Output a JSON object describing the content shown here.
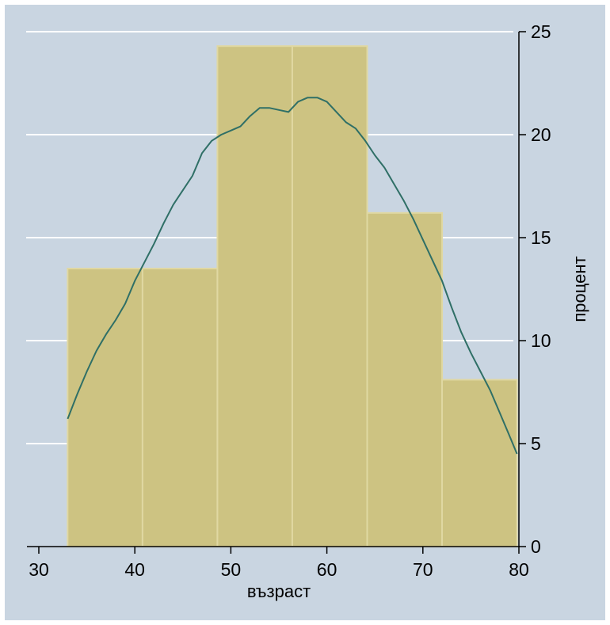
{
  "chart_data": {
    "type": "bar",
    "subtype": "histogram with kernel density line",
    "xlabel": "възраст",
    "ylabel": "процент",
    "xlim": [
      30,
      80
    ],
    "ylim": [
      0,
      25
    ],
    "x_ticks": [
      30,
      40,
      50,
      60,
      70,
      80
    ],
    "y_ticks": [
      0,
      5,
      10,
      15,
      20,
      25
    ],
    "y_axis_side": "right",
    "grid": "horizontal",
    "bins": [
      {
        "start": 33.0,
        "end": 40.8,
        "value": 13.5
      },
      {
        "start": 40.8,
        "end": 48.6,
        "value": 13.5
      },
      {
        "start": 48.6,
        "end": 56.4,
        "value": 24.3
      },
      {
        "start": 56.4,
        "end": 64.2,
        "value": 24.3
      },
      {
        "start": 64.2,
        "end": 72.0,
        "value": 16.2
      },
      {
        "start": 72.0,
        "end": 79.8,
        "value": 8.1
      }
    ],
    "density_line": {
      "x": [
        33,
        34,
        35,
        36,
        37,
        38,
        39,
        40,
        41,
        42,
        43,
        44,
        45,
        46,
        47,
        48,
        49,
        50,
        51,
        52,
        53,
        54,
        55,
        56,
        57,
        58,
        59,
        60,
        61,
        62,
        63,
        64,
        65,
        66,
        67,
        68,
        69,
        70,
        71,
        72,
        73,
        74,
        75,
        76,
        77,
        78,
        79,
        79.8
      ],
      "y": [
        6.2,
        7.4,
        8.5,
        9.5,
        10.3,
        11.0,
        11.8,
        12.9,
        13.8,
        14.7,
        15.7,
        16.6,
        17.3,
        18.0,
        19.1,
        19.7,
        20.0,
        20.2,
        20.4,
        20.9,
        21.3,
        21.3,
        21.2,
        21.1,
        21.6,
        21.8,
        21.8,
        21.6,
        21.1,
        20.6,
        20.3,
        19.7,
        19.0,
        18.4,
        17.6,
        16.8,
        15.9,
        14.9,
        13.9,
        12.9,
        11.6,
        10.4,
        9.4,
        8.5,
        7.6,
        6.5,
        5.4,
        4.5
      ]
    },
    "colors": {
      "background": "#c9d5e1",
      "bar_fill": "#cdc382",
      "bar_edge": "#e0d8a2",
      "grid": "#ffffff",
      "line": "#2f6f66"
    }
  }
}
